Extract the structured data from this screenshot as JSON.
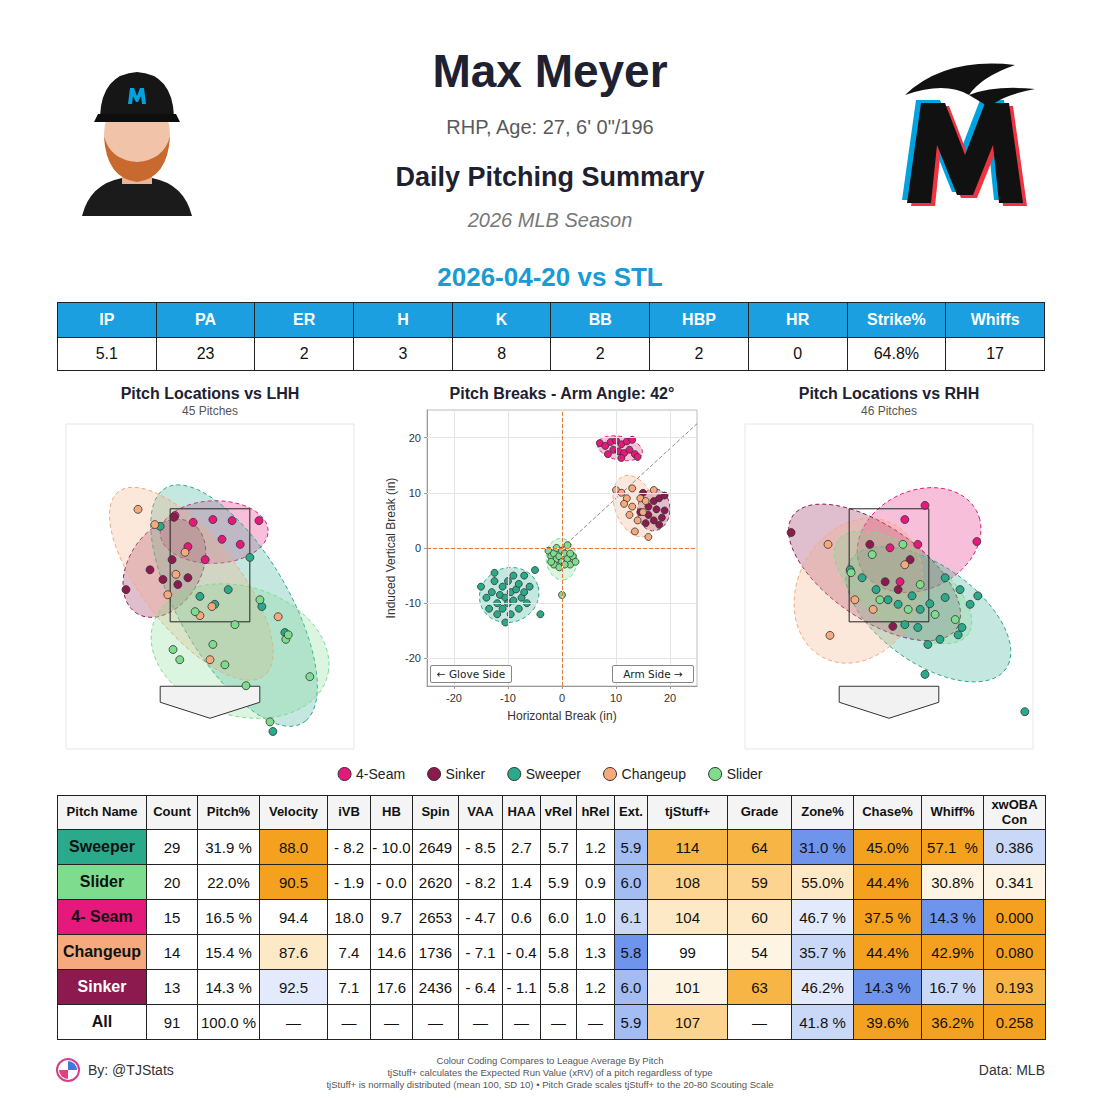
{
  "header": {
    "name": "Max Meyer",
    "bio": "RHP, Age: 27, 6' 0\"/196",
    "title": "Daily Pitching Summary",
    "season": "2026 MLB Season",
    "game": "2026-04-20 vs STL"
  },
  "summary": {
    "columns": [
      "IP",
      "PA",
      "ER",
      "H",
      "K",
      "BB",
      "HBP",
      "HR",
      "Strike%",
      "Whiffs"
    ],
    "values": [
      "5.1",
      "23",
      "2",
      "3",
      "8",
      "2",
      "2",
      "0",
      "64.8%",
      "17"
    ]
  },
  "chart_data": [
    {
      "type": "scatter",
      "title": "Pitch Locations vs LHH",
      "subtitle": "45 Pitches",
      "xlim": [
        -3,
        3
      ],
      "ylim": [
        -0.75,
        5
      ],
      "tick_labels": false,
      "grid": false,
      "strike_zone": {
        "x": [
          -0.83,
          0.83
        ],
        "y": [
          1.5,
          3.5
        ]
      },
      "series": [
        {
          "name": "4-Seam",
          "color": "#e5197c",
          "x": [
            -0.35,
            0.06,
            0.46,
            1.02,
            -0.46,
            0.25,
            -0.1,
            0.63,
            -0.73
          ],
          "y": [
            3.26,
            3.31,
            3.29,
            3.29,
            2.83,
            2.96,
            2.6,
            2.87,
            3.38
          ]
        },
        {
          "name": "Sinker",
          "color": "#8c1a4f",
          "x": [
            -1.75,
            -1.25,
            -0.98,
            -0.79,
            -0.67,
            -0.46,
            -0.75
          ],
          "y": [
            2.07,
            2.42,
            2.25,
            2.6,
            2.16,
            2.28,
            3.35
          ]
        },
        {
          "name": "Sweeper",
          "color": "#2aa98b",
          "x": [
            -1.04,
            -0.21,
            0.1,
            0.38,
            0.83,
            1.08,
            1.56,
            1.31
          ],
          "y": [
            3.19,
            1.95,
            1.81,
            2.07,
            2.64,
            1.77,
            1.31,
            -0.44
          ]
        },
        {
          "name": "Changeup",
          "color": "#f5a97d",
          "x": [
            -1.5,
            -1.15,
            -0.88,
            -0.71,
            -0.52,
            -0.21,
            0.0,
            1.42,
            0.04
          ],
          "y": [
            3.49,
            3.22,
            1.98,
            2.34,
            2.73,
            1.61,
            0.83,
            1.59,
            1.77
          ]
        },
        {
          "name": "Slider",
          "color": "#7edc8f",
          "x": [
            -0.77,
            -0.63,
            0.06,
            0.75,
            1.58,
            1.63,
            2.08,
            1.25,
            0.52,
            -0.31,
            1.04,
            0.31
          ],
          "y": [
            1.01,
            0.83,
            1.1,
            0.37,
            1.19,
            1.27,
            0.53,
            -0.27,
            1.45,
            1.68,
            1.89,
            0.74
          ]
        }
      ]
    },
    {
      "type": "scatter",
      "title": "Pitch Breaks - Arm Angle: 42°",
      "arm_angle": 42,
      "xlabel": "Horizontal Break (in)",
      "ylabel": "Induced Vertical Break (in)",
      "xlim": [
        -25,
        25
      ],
      "ylim": [
        -25,
        25
      ],
      "xticks": [
        -20,
        -10,
        0,
        10,
        20
      ],
      "yticks": [
        -20,
        -10,
        0,
        10,
        20
      ],
      "grid": true,
      "legend": "bottom",
      "ref_lines": {
        "x": 0,
        "y": 0
      },
      "annotations": [
        "← Glove Side",
        "Arm Side →"
      ],
      "series": [
        {
          "name": "4-Seam",
          "color": "#e5197c",
          "x": [
            7,
            8,
            9,
            10,
            11,
            12,
            13,
            9.5,
            10.5,
            11.5,
            12.5,
            8.5,
            13.5,
            14,
            11
          ],
          "y": [
            19,
            18.5,
            19.2,
            19.5,
            18.8,
            19.3,
            19.6,
            17.8,
            17.5,
            17.2,
            17.8,
            17,
            17,
            16.5,
            16.3
          ]
        },
        {
          "name": "Sinker",
          "color": "#8c1a4f",
          "x": [
            15,
            17,
            18,
            19,
            16,
            17.5,
            19,
            16,
            17,
            18.5,
            15.5,
            14.5,
            18
          ],
          "y": [
            10,
            8.5,
            9,
            9.5,
            7.5,
            7,
            6.8,
            6,
            5,
            5.5,
            4.5,
            6.5,
            4.2
          ]
        },
        {
          "name": "Sweeper",
          "color": "#2aa98b",
          "x": [
            -15,
            -14,
            -13.5,
            -13,
            -12.5,
            -12,
            -12,
            -11.5,
            -11,
            -11,
            -10.5,
            -10,
            -10,
            -9.5,
            -9.5,
            -9,
            -9,
            -8.5,
            -8,
            -8,
            -7.5,
            -7,
            -7,
            -6.5,
            -6,
            -5,
            -4,
            -12.5,
            -10.5
          ],
          "y": [
            -7,
            -9,
            -11,
            -8,
            -6,
            -10,
            -12,
            -8.5,
            -7,
            -11,
            -9,
            -6,
            -10,
            -8,
            -12,
            -5,
            -9.5,
            -7.5,
            -11,
            -6.5,
            -9,
            -8,
            -5,
            -10,
            -7,
            -4,
            -12,
            -4.5,
            -13.5
          ]
        },
        {
          "name": "Changeup",
          "color": "#f5a97d",
          "x": [
            10,
            11,
            12,
            13,
            11.5,
            13,
            14.5,
            12.5,
            14,
            15,
            13.5,
            16,
            15.5,
            17
          ],
          "y": [
            10.5,
            10,
            9,
            10.8,
            8,
            7.5,
            9,
            6,
            5,
            6.5,
            3,
            2,
            8.5,
            10.5
          ]
        },
        {
          "name": "Slider",
          "color": "#7edc8f",
          "x": [
            -2.5,
            -2,
            -1.5,
            -1,
            -1,
            -0.5,
            0,
            0,
            0.5,
            1,
            1.5,
            2,
            2.5,
            -1.5,
            -0.5,
            0.5,
            1,
            -2,
            1.5,
            0
          ],
          "y": [
            -0.5,
            -1.5,
            -1,
            -2,
            0,
            -1.5,
            -0.5,
            -2.5,
            -1,
            -2,
            -3,
            -1.5,
            -2.5,
            -3,
            -3.5,
            -3,
            0.5,
            -2.5,
            -1,
            -8.5
          ]
        }
      ]
    },
    {
      "type": "scatter",
      "title": "Pitch Locations vs RHH",
      "subtitle": "46 Pitches",
      "xlim": [
        -3,
        3
      ],
      "ylim": [
        -0.75,
        5
      ],
      "tick_labels": false,
      "grid": false,
      "strike_zone": {
        "x": [
          -0.83,
          0.83
        ],
        "y": [
          1.5,
          3.5
        ]
      },
      "series": [
        {
          "name": "4-Seam",
          "color": "#e5197c",
          "x": [
            0.75,
            0.33,
            0.6,
            0.02,
            1.83,
            0.23
          ],
          "y": [
            3.56,
            3.31,
            2.87,
            2.81,
            2.92,
            2.21
          ]
        },
        {
          "name": "Sinker",
          "color": "#8c1a4f",
          "x": [
            -2.04,
            -0.4,
            -0.08,
            0.08,
            0.19,
            0.44
          ],
          "y": [
            3.08,
            2.87,
            2.21,
            1.42,
            2.07,
            2.6
          ]
        },
        {
          "name": "Sweeper",
          "color": "#2aa98b",
          "x": [
            -0.81,
            -0.56,
            -0.27,
            -0.02,
            0.19,
            0.48,
            0.65,
            0.85,
            1.17,
            1.48,
            1.52,
            1.69,
            1.85,
            1.44,
            1.06,
            0.81,
            0.6,
            0.33,
            1.17,
            0.75,
            2.83
          ],
          "y": [
            2.42,
            2.28,
            2.07,
            1.89,
            1.81,
            1.96,
            1.72,
            1.82,
            1.93,
            2.07,
            1.4,
            1.81,
            1.96,
            1.27,
            1.19,
            1.1,
            1.4,
            1.45,
            2.28,
            0.57,
            -0.09
          ]
        },
        {
          "name": "Changeup",
          "color": "#f5a97d",
          "x": [
            -1.27,
            -1.23,
            -0.71,
            -0.33,
            0.33
          ],
          "y": [
            2.87,
            1.26,
            1.89,
            1.72,
            2.51
          ]
        },
        {
          "name": "Slider",
          "color": "#7edc8f",
          "x": [
            -0.79,
            -0.35,
            0.29,
            0.4,
            0.96,
            1.38,
            -0.19,
            0.65
          ],
          "y": [
            2.37,
            2.69,
            2.87,
            1.72,
            1.63,
            1.54,
            1.89,
            2.16
          ]
        }
      ]
    }
  ],
  "table": {
    "columns": [
      "Pitch Name",
      "Count",
      "Pitch%",
      "Velocity",
      "iVB",
      "HB",
      "Spin",
      "VAA",
      "HAA",
      "vRel",
      "hRel",
      "Ext.",
      "tjStuff+",
      "Grade",
      "Zone%",
      "Chase%",
      "Whiff%",
      "xwOBA Con"
    ],
    "rows": [
      {
        "cells": [
          "Sweeper",
          "29",
          "31.9 %",
          "88.0",
          "- 8.2",
          "- 10.0",
          "2649",
          "- 8.5",
          "2.7",
          "5.7",
          "1.2",
          "5.9",
          "114",
          "64",
          "31.0 %",
          "45.0%",
          "57.1  %",
          "0.386"
        ],
        "colors": [
          "#2aa98b",
          null,
          null,
          "#f4a11f",
          null,
          null,
          null,
          null,
          null,
          null,
          null,
          "#a3bdf3",
          "#f7b545",
          "#f7b545",
          "#6e94ec",
          "#f4a11f",
          "#f4a11f",
          "#c9d8f7"
        ]
      },
      {
        "cells": [
          "Slider",
          "20",
          "22.0%",
          "90.5",
          "- 1.9",
          "- 0.0",
          "2620",
          "- 8.2",
          "1.4",
          "5.9",
          "0.9",
          "6.0",
          "108",
          "59",
          "55.0%",
          "44.4%",
          "30.8%",
          "0.341"
        ],
        "colors": [
          "#7edc8f",
          null,
          null,
          "#f4a11f",
          null,
          null,
          null,
          null,
          null,
          null,
          null,
          "#a3bdf3",
          "#fcd48f",
          "#fcd48f",
          "#fde9c6",
          "#f4a11f",
          "#fef4e3",
          "#fef4e3"
        ]
      },
      {
        "cells": [
          "4- Seam",
          "15",
          "16.5 %",
          "94.4",
          "18.0",
          "9.7",
          "2653",
          "- 4.7",
          "0.6",
          "6.0",
          "1.0",
          "6.1",
          "104",
          "60",
          "46.7 %",
          "37.5 %",
          "14.3 %",
          "0.000"
        ],
        "colors": [
          "#e5197c",
          null,
          null,
          null,
          null,
          null,
          null,
          null,
          null,
          null,
          null,
          "#c9d8f7",
          "#fde9c6",
          "#fde9c6",
          "#e2eafb",
          "#f4a11f",
          "#6e94ec",
          "#f4a11f"
        ]
      },
      {
        "cells": [
          "Changeup",
          "14",
          "15.4 %",
          "87.6",
          "7.4",
          "14.6",
          "1736",
          "- 7.1",
          "- 0.4",
          "5.8",
          "1.3",
          "5.8",
          "99",
          "54",
          "35.7 %",
          "44.4%",
          "42.9%",
          "0.080"
        ],
        "colors": [
          "#f5a97d",
          null,
          null,
          "#fde9c6",
          null,
          null,
          null,
          null,
          null,
          null,
          null,
          "#6e94ec",
          null,
          "#fef4e3",
          "#c9d8f7",
          "#f4a11f",
          "#f4a11f",
          "#f4a11f"
        ]
      },
      {
        "cells": [
          "Sinker",
          "13",
          "14.3 %",
          "92.5",
          "7.1",
          "17.6",
          "2436",
          "- 6.4",
          "- 1.1",
          "5.8",
          "1.2",
          "6.0",
          "101",
          "63",
          "46.2%",
          "14.3 %",
          "16.7 %",
          "0.193"
        ],
        "colors": [
          "#8c1a4f",
          null,
          null,
          "#e2eafb",
          null,
          null,
          null,
          null,
          null,
          null,
          null,
          "#a3bdf3",
          "#fef4e3",
          "#f7b545",
          "#e2eafb",
          "#6e94ec",
          "#c9d8f7",
          "#f7b545"
        ]
      },
      {
        "cells": [
          "All",
          "91",
          "100.0 %",
          "—",
          "—",
          "—",
          "—",
          "—",
          "—",
          "—",
          "—",
          "5.9",
          "107",
          "—",
          "41.8 %",
          "39.6%",
          "36.2%",
          "0.258"
        ],
        "colors": [
          null,
          null,
          null,
          null,
          null,
          null,
          null,
          null,
          null,
          null,
          null,
          "#a3bdf3",
          "#fcd48f",
          null,
          "#c9d8f7",
          "#f4a11f",
          "#f4a11f",
          "#f4a11f"
        ]
      }
    ]
  },
  "footer": {
    "credit": "By: @TJStats",
    "notes": [
      "Colour Coding Compares to League Average By Pitch",
      "tjStuff+ calculates the Expected Run Value (xRV) of a pitch regardless of type",
      "tjStuff+ is normally distributed (mean 100, SD 10) • Pitch Grade scales tjStuff+ to the 20-80 Scouting Scale"
    ],
    "source": "Data: MLB"
  }
}
